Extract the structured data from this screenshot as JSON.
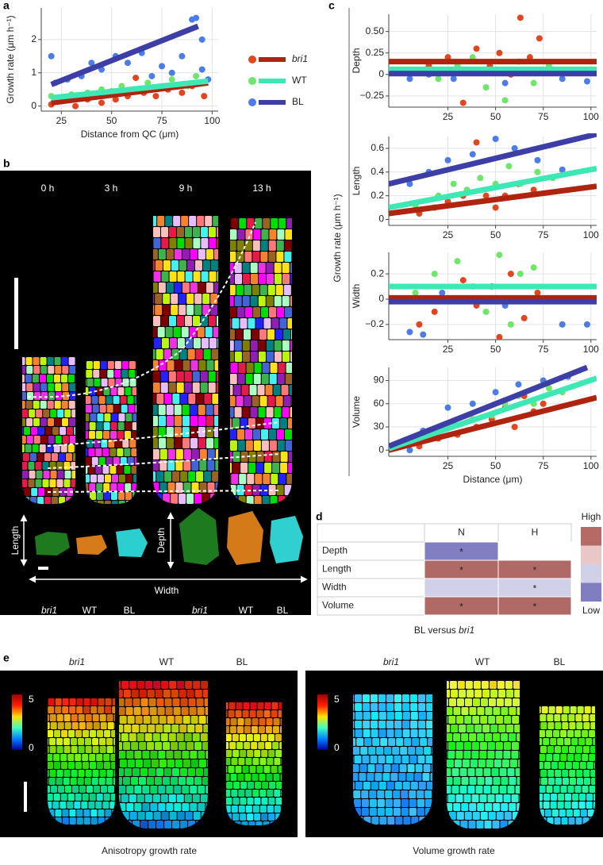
{
  "panel_labels": [
    "a",
    "b",
    "c",
    "d",
    "e"
  ],
  "chart_data": [
    {
      "type": "scatter",
      "xlabel": "Distance from QC (μm)",
      "ylabel": "Growth rate (μm h⁻¹)",
      "xlim": [
        15,
        103
      ],
      "ylim": [
        -0.15,
        2.95
      ],
      "xticks": [
        25,
        50,
        75,
        100
      ],
      "yticks": [
        0,
        1,
        2
      ],
      "grid": true,
      "legend": "right",
      "series": [
        {
          "name": "bri1",
          "name_style": "italic",
          "color": "#e2461e",
          "line_color": "#b0230f",
          "x": [
            20,
            25,
            32,
            38,
            45,
            52,
            58,
            62,
            66,
            72,
            78,
            85,
            90,
            96
          ],
          "y": [
            0.05,
            0.15,
            0.0,
            0.2,
            0.1,
            0.2,
            0.3,
            0.85,
            0.4,
            0.3,
            0.5,
            0.4,
            0.6,
            0.3
          ],
          "fit_x": [
            20,
            98
          ],
          "fit_y": [
            0.1,
            0.7
          ]
        },
        {
          "name": "WT",
          "name_style": "normal",
          "color": "#6ee66a",
          "line_color": "#3de8b5",
          "x": [
            20,
            25,
            30,
            38,
            45,
            50,
            55,
            62,
            68,
            75,
            80,
            88,
            92,
            96
          ],
          "y": [
            0.3,
            0.2,
            0.35,
            0.4,
            0.5,
            0.45,
            0.6,
            0.5,
            0.7,
            0.55,
            0.8,
            0.6,
            0.9,
            0.7
          ],
          "fit_x": [
            20,
            98
          ],
          "fit_y": [
            0.25,
            0.75
          ]
        },
        {
          "name": "BL",
          "name_style": "normal",
          "color": "#4b7ce8",
          "line_color": "#3d3fa6",
          "x": [
            20,
            22,
            28,
            35,
            40,
            45,
            52,
            58,
            65,
            70,
            75,
            80,
            85,
            90,
            92,
            95,
            95,
            98
          ],
          "y": [
            1.5,
            0.7,
            0.8,
            0.9,
            1.3,
            1.1,
            1.5,
            1.3,
            1.6,
            0.9,
            1.2,
            1.0,
            1.5,
            2.6,
            2.65,
            2.0,
            1.1,
            0.8
          ],
          "fit_x": [
            20,
            93
          ],
          "fit_y": [
            0.65,
            2.4
          ]
        }
      ]
    },
    {
      "type": "scatter",
      "ylabel": "Depth",
      "xlim": [
        -6,
        103
      ],
      "ylim": [
        -0.38,
        0.7
      ],
      "xticks": [
        25,
        50,
        75,
        100
      ],
      "yticks": [
        {
          "value": -0.25,
          "label": "−0.25"
        },
        0,
        {
          "value": 0.25,
          "label": "0.25"
        },
        {
          "value": 0.5,
          "label": "0.50"
        }
      ],
      "grid": true,
      "series": [
        {
          "color": "#e2461e",
          "line_color": "#b0230f",
          "x": [
            15,
            25,
            33,
            40,
            47,
            52,
            58,
            63,
            68,
            73
          ],
          "y": [
            0.1,
            0.2,
            -0.33,
            0.3,
            0.1,
            0.25,
            0.0,
            0.66,
            0.2,
            0.42
          ],
          "fit_x": [
            -6,
            103
          ],
          "fit_y": [
            0.15,
            0.15
          ]
        },
        {
          "color": "#6ee66a",
          "line_color": "#3de8b5",
          "x": [
            10,
            20,
            30,
            38,
            45,
            50,
            55,
            62,
            70,
            78
          ],
          "y": [
            0.05,
            -0.05,
            0.1,
            0.2,
            -0.15,
            0.05,
            -0.3,
            0.15,
            -0.1,
            0.1
          ],
          "fit_x": [
            -6,
            103
          ],
          "fit_y": [
            0.06,
            0.06
          ]
        },
        {
          "color": "#4b7ce8",
          "line_color": "#3d3fa6",
          "x": [
            5,
            15,
            28,
            42,
            55,
            70,
            85,
            98
          ],
          "y": [
            -0.05,
            0.0,
            -0.05,
            0.05,
            -0.1,
            0.05,
            -0.05,
            -0.08
          ],
          "fit_x": [
            -6,
            103
          ],
          "fit_y": [
            0.01,
            0.01
          ]
        }
      ]
    },
    {
      "type": "scatter",
      "ylabel": "Length",
      "xlim": [
        -6,
        103
      ],
      "ylim": [
        -0.05,
        0.7
      ],
      "xticks": [
        25,
        50,
        75,
        100
      ],
      "yticks": [
        0,
        0.2,
        0.4,
        0.6
      ],
      "grid": true,
      "series": [
        {
          "color": "#e2461e",
          "line_color": "#b0230f",
          "x": [
            10,
            18,
            25,
            33,
            40,
            45,
            50,
            55,
            62,
            70
          ],
          "y": [
            0.05,
            0.1,
            0.15,
            0.2,
            0.65,
            0.2,
            0.1,
            0.2,
            0.3,
            0.25
          ],
          "fit_x": [
            -6,
            103
          ],
          "fit_y": [
            0.05,
            0.28
          ]
        },
        {
          "color": "#6ee66a",
          "line_color": "#3de8b5",
          "x": [
            8,
            20,
            28,
            35,
            42,
            50,
            57,
            63,
            72,
            80
          ],
          "y": [
            0.12,
            0.2,
            0.3,
            0.25,
            0.35,
            0.3,
            0.45,
            0.3,
            0.4,
            0.35
          ],
          "fit_x": [
            -6,
            103
          ],
          "fit_y": [
            0.1,
            0.43
          ]
        },
        {
          "color": "#4b7ce8",
          "line_color": "#3d3fa6",
          "x": [
            5,
            15,
            25,
            38,
            50,
            60,
            72,
            85
          ],
          "y": [
            0.3,
            0.4,
            0.5,
            0.55,
            0.68,
            0.6,
            0.5,
            0.42
          ],
          "fit_x": [
            -6,
            103
          ],
          "fit_y": [
            0.3,
            0.72
          ]
        }
      ]
    },
    {
      "type": "scatter",
      "ylabel": "Width",
      "xlim": [
        -6,
        103
      ],
      "ylim": [
        -0.32,
        0.37
      ],
      "xticks": [
        25,
        50,
        75,
        100
      ],
      "yticks": [
        {
          "value": -0.2,
          "label": "−0.2"
        },
        0,
        0.2
      ],
      "grid": true,
      "series": [
        {
          "color": "#e2461e",
          "line_color": "#b0230f",
          "x": [
            10,
            18,
            25,
            33,
            40,
            48,
            52,
            58,
            65,
            72
          ],
          "y": [
            -0.2,
            -0.1,
            0.0,
            0.15,
            -0.05,
            0.1,
            -0.3,
            0.2,
            -0.15,
            0.05
          ],
          "fit_x": [
            -6,
            103
          ],
          "fit_y": [
            0.01,
            0.01
          ]
        },
        {
          "color": "#6ee66a",
          "line_color": "#3de8b5",
          "x": [
            8,
            18,
            30,
            38,
            45,
            52,
            58,
            63,
            70,
            78
          ],
          "y": [
            0.05,
            0.2,
            0.3,
            0.1,
            -0.1,
            0.35,
            -0.2,
            0.2,
            0.25,
            0.0
          ],
          "fit_x": [
            -6,
            103
          ],
          "fit_y": [
            0.1,
            0.1
          ]
        },
        {
          "color": "#4b7ce8",
          "line_color": "#3d3fa6",
          "x": [
            5,
            12,
            22,
            38,
            55,
            70,
            85,
            98
          ],
          "y": [
            -0.26,
            -0.28,
            0.05,
            0.0,
            -0.05,
            0.0,
            -0.2,
            -0.2
          ],
          "fit_x": [
            -6,
            103
          ],
          "fit_y": [
            -0.02,
            -0.02
          ]
        }
      ]
    },
    {
      "type": "scatter",
      "ylabel": "Volume",
      "xlabel": "Distance (μm)",
      "xlim": [
        -6,
        103
      ],
      "ylim": [
        -8,
        107
      ],
      "xticks": [
        25,
        50,
        75,
        100
      ],
      "yticks": [
        0,
        30,
        60,
        90
      ],
      "grid": true,
      "series": [
        {
          "color": "#e2461e",
          "line_color": "#b0230f",
          "x": [
            10,
            20,
            30,
            40,
            48,
            55,
            60,
            65,
            70,
            75
          ],
          "y": [
            5,
            15,
            20,
            30,
            40,
            55,
            30,
            70,
            50,
            60
          ],
          "fit_x": [
            -6,
            103
          ],
          "fit_y": [
            0,
            68
          ]
        },
        {
          "color": "#6ee66a",
          "line_color": "#3de8b5",
          "x": [
            8,
            18,
            28,
            38,
            48,
            55,
            62,
            70,
            78,
            85
          ],
          "y": [
            10,
            20,
            35,
            40,
            45,
            60,
            70,
            60,
            80,
            75
          ],
          "fit_x": [
            -6,
            103
          ],
          "fit_y": [
            2,
            93
          ]
        },
        {
          "color": "#4b7ce8",
          "line_color": "#3d3fa6",
          "x": [
            5,
            12,
            25,
            38,
            50,
            62,
            75,
            88
          ],
          "y": [
            0,
            25,
            55,
            60,
            75,
            85,
            90,
            95
          ],
          "fit_x": [
            -6,
            98
          ],
          "fit_y": [
            5,
            107
          ]
        }
      ]
    }
  ],
  "panel_b": {
    "times": [
      "0 h",
      "3 h",
      "9 h",
      "13 h"
    ],
    "length": "Length",
    "depth": "Depth",
    "width": "Width",
    "genotypes": [
      "bri1",
      "WT",
      "BL",
      "bri1",
      "WT",
      "BL"
    ]
  },
  "panel_c": {
    "ylabel": "Growth rate (μm h⁻¹)"
  },
  "panel_d": {
    "columns": [
      "N",
      "H"
    ],
    "rows": [
      {
        "label": "Depth",
        "cells": [
          {
            "mark": "*",
            "color": "#7f7fc2"
          },
          {
            "color": "#ffffff"
          }
        ]
      },
      {
        "label": "Length",
        "cells": [
          {
            "mark": "*",
            "color": "#b06a66"
          },
          {
            "mark": "*",
            "color": "#b06a66"
          }
        ]
      },
      {
        "label": "Width",
        "cells": [
          {
            "color": "#d0d0e8"
          },
          {
            "mark": "*",
            "color": "#d0d0e8"
          }
        ]
      },
      {
        "label": "Volume",
        "cells": [
          {
            "mark": "*",
            "color": "#b06a66"
          },
          {
            "mark": "*",
            "color": "#b06a66"
          }
        ]
      }
    ],
    "caption": "BL versus ",
    "caption_italic": "bri1",
    "scale_high": "High",
    "scale_low": "Low",
    "scale_colors": [
      "#b56a65",
      "#e8c7c6",
      "#d0d0e8",
      "#7e7ec0"
    ]
  },
  "panel_e": {
    "genotypes": [
      "bri1",
      "WT",
      "BL",
      "bri1",
      "WT",
      "BL"
    ],
    "colorbar": {
      "max": 5,
      "min": 0
    },
    "captions": [
      "Anisotropy growth rate",
      "Volume growth rate"
    ]
  }
}
